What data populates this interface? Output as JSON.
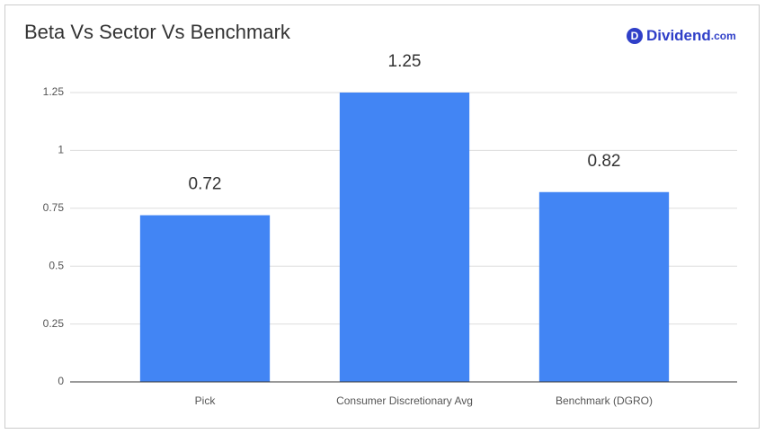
{
  "brand": {
    "icon": "D",
    "name": "Dividend",
    "suffix": ".com"
  },
  "chart_data": {
    "type": "bar",
    "title": "Beta Vs Sector Vs Benchmark",
    "categories": [
      "Pick",
      "Consumer Discretionary Avg",
      "Benchmark (DGRO)"
    ],
    "values": [
      0.72,
      1.25,
      0.82
    ],
    "color": "#4285f4",
    "ylim": [
      0,
      1.25
    ],
    "yticks": [
      0,
      0.25,
      0.5,
      0.75,
      1,
      1.25
    ],
    "grid": true
  }
}
